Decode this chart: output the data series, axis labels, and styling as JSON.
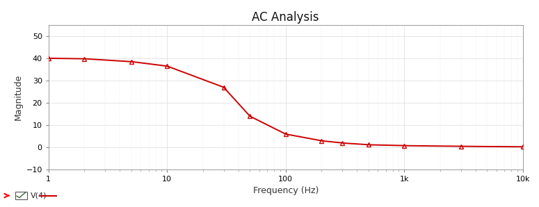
{
  "title": "AC Analysis",
  "xlabel": "Frequency (Hz)",
  "ylabel": "Magnitude",
  "legend_label": "V(4)",
  "line_color": "#cc0000",
  "marker_style": "^",
  "marker_color": "#cc0000",
  "marker_size": 4,
  "line_width": 1.4,
  "xlim": [
    1,
    10000
  ],
  "ylim": [
    -10,
    55
  ],
  "yticks": [
    -10,
    0,
    10,
    20,
    30,
    40,
    50
  ],
  "xtick_labels": [
    "1",
    "10",
    "100",
    "1k",
    "10k"
  ],
  "xtick_values": [
    1,
    10,
    100,
    1000,
    10000
  ],
  "bg_color": "#ffffff",
  "fig_color": "#ffffff",
  "grid_color": "#e0e0e0",
  "data_x": [
    1,
    2,
    5,
    10,
    30,
    50,
    100,
    200,
    300,
    500,
    1000,
    3000,
    10000
  ],
  "data_y": [
    40.0,
    39.8,
    38.5,
    36.5,
    27.0,
    14.0,
    6.0,
    3.0,
    2.0,
    1.2,
    0.8,
    0.5,
    0.3
  ]
}
